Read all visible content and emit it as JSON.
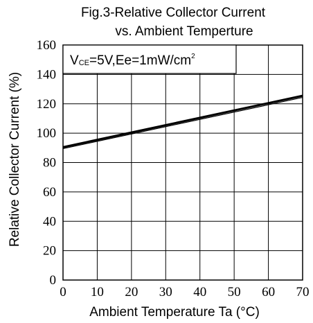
{
  "chart_data": {
    "type": "line",
    "title_line1": "Fig.3-Relative Collector Current",
    "title_line2": "vs. Ambient Temperture",
    "xlabel": "Ambient Temperature Ta (°C)",
    "ylabel": "Relative Collector Current (%)",
    "xlim": [
      0,
      70
    ],
    "ylim": [
      0,
      160
    ],
    "x_ticks": [
      0,
      10,
      20,
      30,
      40,
      50,
      60,
      70
    ],
    "y_ticks": [
      0,
      20,
      40,
      60,
      80,
      100,
      120,
      140,
      160
    ],
    "grid": true,
    "condition": {
      "v_main": "V",
      "v_sub": "CE",
      "rest": "=5V,Ee=1mW/cm",
      "sup": "2"
    },
    "series": [
      {
        "x": [
          0,
          70
        ],
        "y": [
          90.5,
          125.5
        ],
        "weight": "thick"
      },
      {
        "x": [
          0,
          70
        ],
        "y": [
          89.5,
          124.3
        ],
        "weight": "thin"
      }
    ]
  }
}
